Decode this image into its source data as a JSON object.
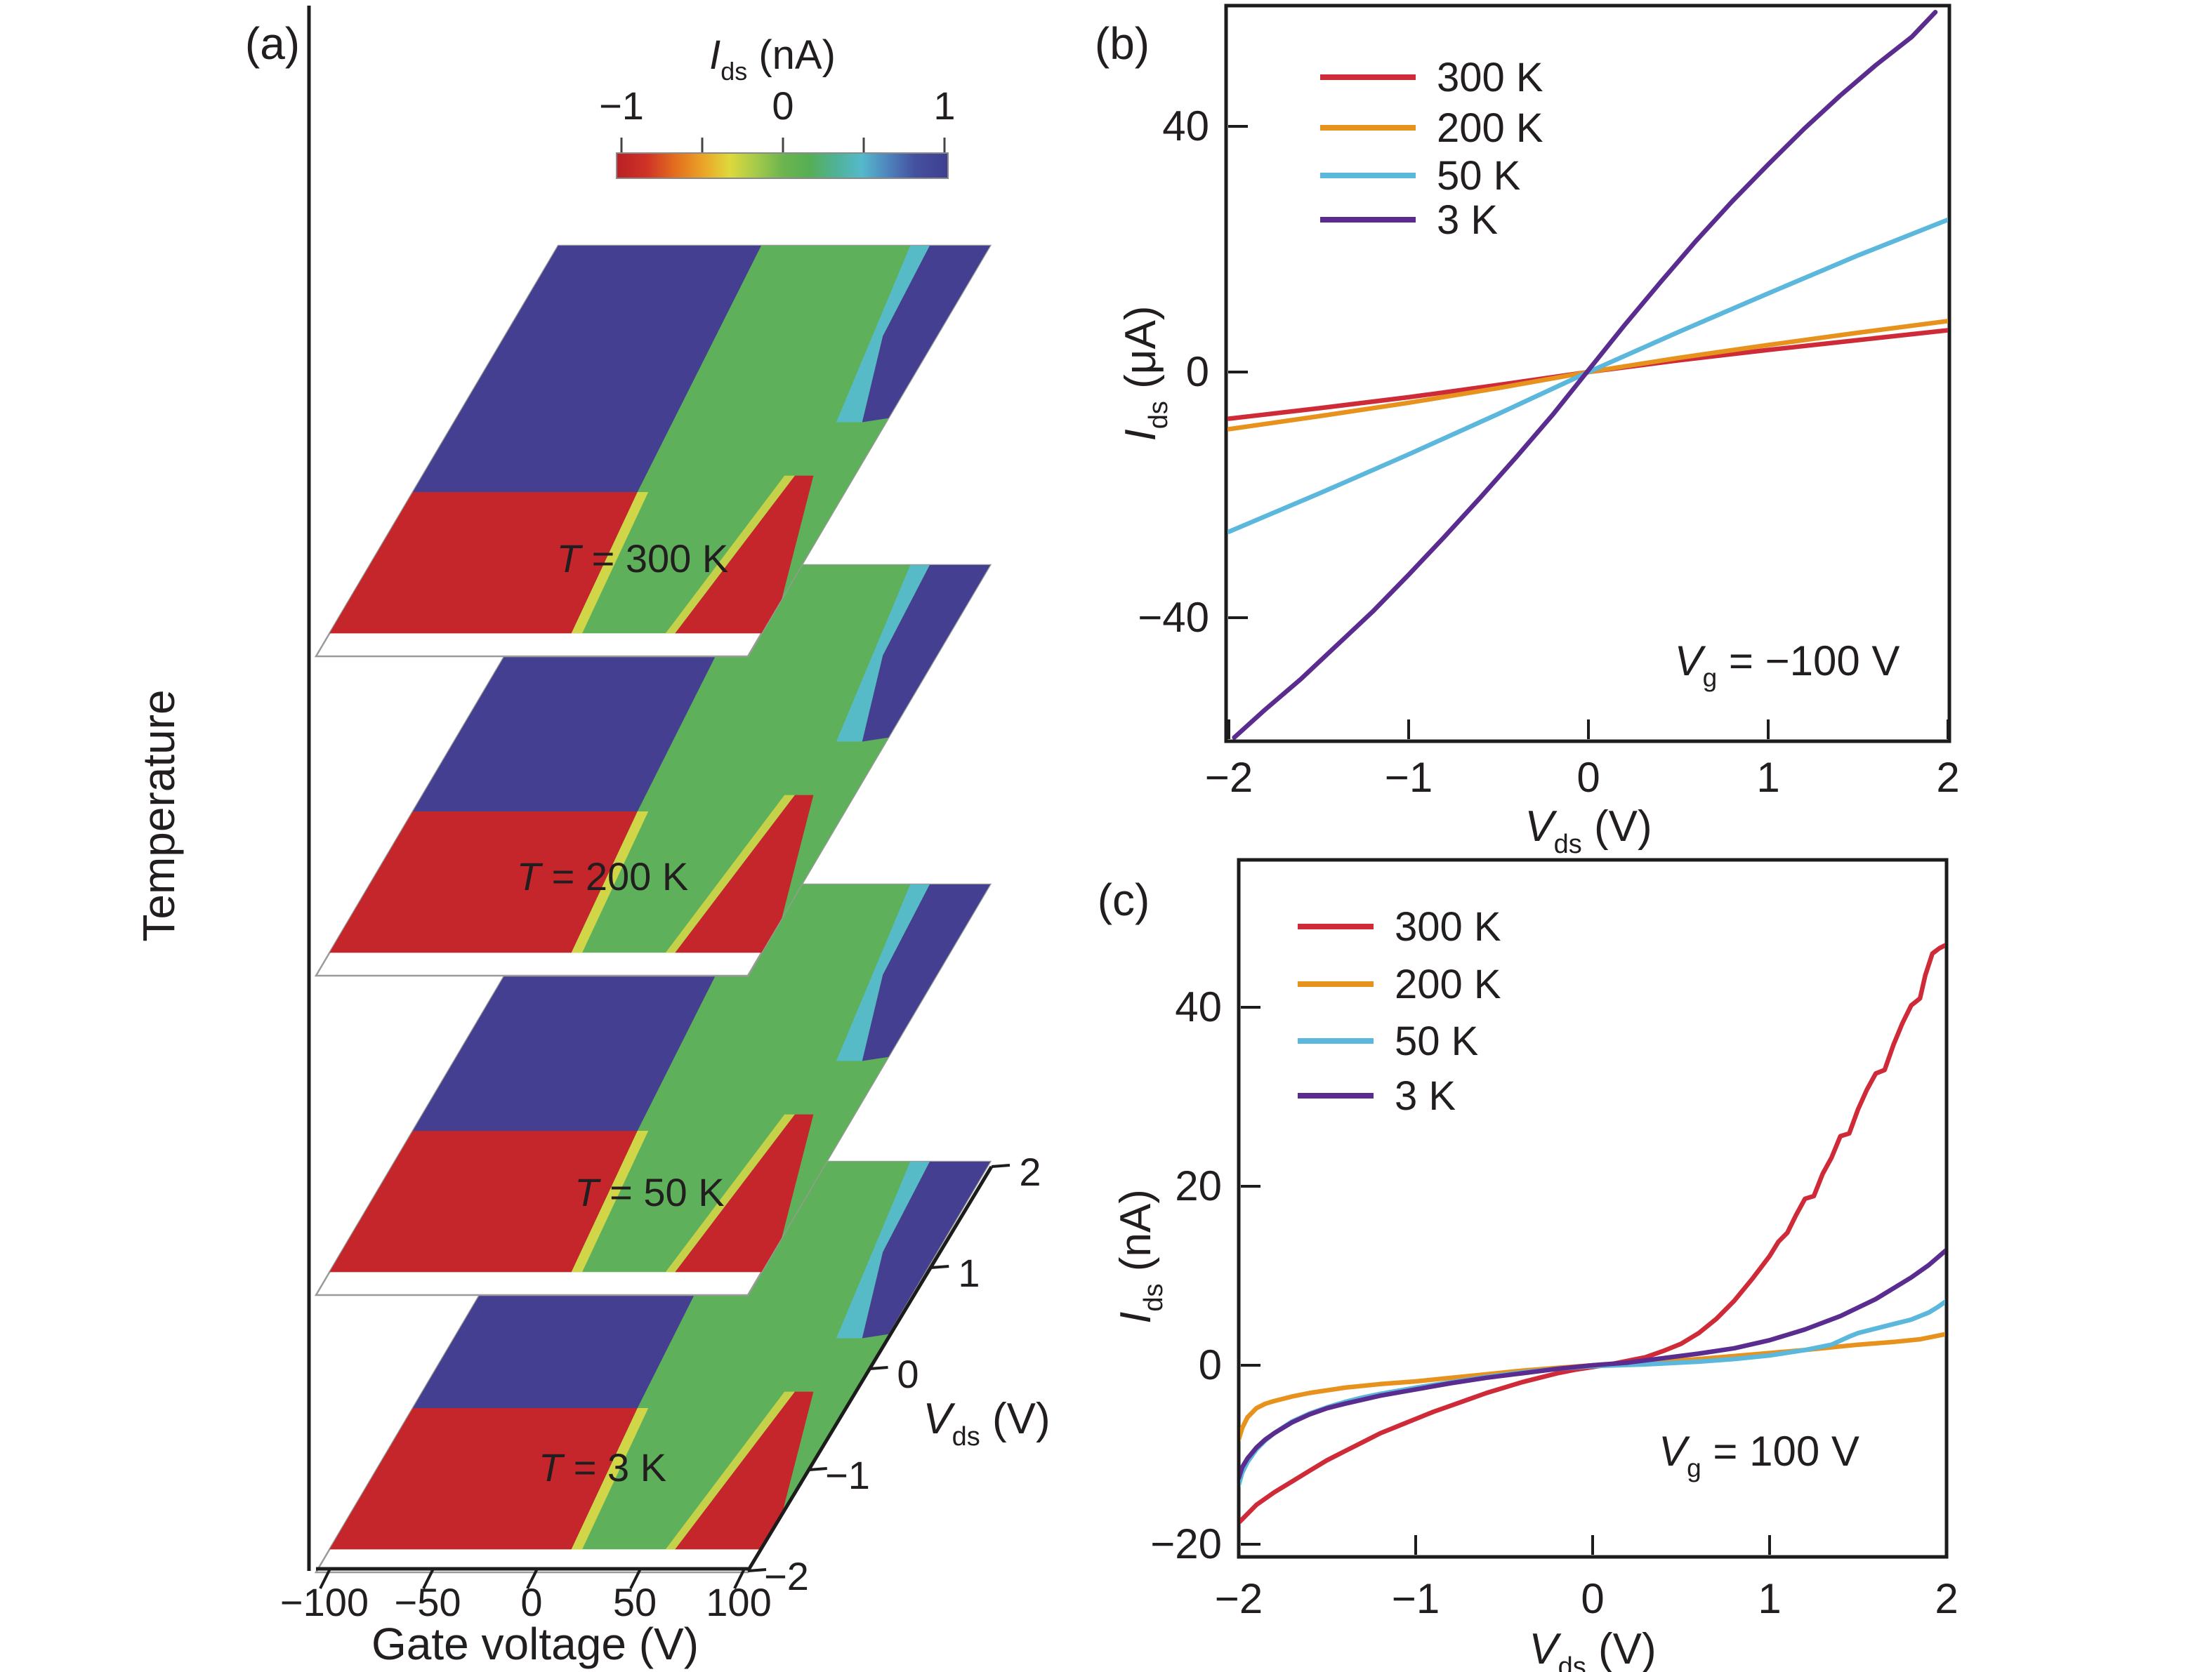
{
  "figure": {
    "panel_labels": [
      "(a)",
      "(b)",
      "(c)"
    ]
  },
  "sub_labels": {
    "colorbar_title": {
      "var": "I",
      "sub": "ds",
      "rest": " (nA)"
    },
    "vds_3d": {
      "var": "V",
      "sub": "ds",
      "rest": " (V)"
    },
    "b_ylabel": {
      "var": "I",
      "sub": "ds",
      "rest": " (μA)"
    },
    "b_xlabel": {
      "var": "V",
      "sub": "ds",
      "rest": " (V)"
    },
    "c_ylabel": {
      "var": "I",
      "sub": "ds",
      "rest": " (nA)"
    },
    "c_xlabel": {
      "var": "V",
      "sub": "ds",
      "rest": " (V)"
    },
    "b_annotation": {
      "var": "V",
      "sub": "g",
      "rest": " = −100 V"
    },
    "c_annotation": {
      "var": "V",
      "sub": "g",
      "rest": " = 100 V"
    }
  },
  "chart_data": [
    {
      "type": "heatmap",
      "panel": "a",
      "z_axis_label": "Temperature",
      "x_axis": {
        "label": "Gate voltage (V)",
        "tick_labels": [
          "−100",
          "−50",
          "0",
          "50",
          "100"
        ],
        "tick_values": [
          -100,
          -50,
          0,
          50,
          100
        ],
        "range": [
          -100,
          100
        ]
      },
      "depth_axis": {
        "tick_labels": [
          "2",
          "1",
          "0",
          "−1",
          "−2"
        ],
        "tick_values": [
          2,
          1,
          0,
          -1,
          -2
        ],
        "range": [
          -2,
          2
        ]
      },
      "colorbar": {
        "tick_labels": [
          "−1",
          "0",
          "1"
        ],
        "tick_values": [
          -1,
          0,
          1
        ],
        "range": [
          -1,
          1
        ],
        "gradient": [
          [
            0,
            "#b92025"
          ],
          [
            0.09,
            "#cf3227"
          ],
          [
            0.18,
            "#e4701f"
          ],
          [
            0.27,
            "#eaa929"
          ],
          [
            0.34,
            "#ded93c"
          ],
          [
            0.42,
            "#a6ca4a"
          ],
          [
            0.5,
            "#6db54f"
          ],
          [
            0.58,
            "#57ae53"
          ],
          [
            0.66,
            "#4fb295"
          ],
          [
            0.74,
            "#55b9cb"
          ],
          [
            0.82,
            "#4f83bd"
          ],
          [
            0.9,
            "#44519f"
          ],
          [
            1,
            "#3f3e8f"
          ]
        ]
      },
      "layers": [
        {
          "temperature": "300 K",
          "label": "T = 300 K",
          "label_spec": {
            "var": "T",
            "rest": " = 300 K"
          }
        },
        {
          "temperature": "200 K",
          "label": "T = 200 K",
          "label_spec": {
            "var": "T",
            "rest": " = 200 K"
          }
        },
        {
          "temperature": "50 K",
          "label": "T = 50 K",
          "label_spec": {
            "var": "T",
            "rest": " = 50 K"
          }
        },
        {
          "temperature": "3 K",
          "label": "T = 3 K",
          "label_spec": {
            "var": "T",
            "rest": " = 3 K"
          }
        }
      ],
      "palette": {
        "negative_red": "#c5262c",
        "zero_green": "#5fb05a",
        "positive_blue": "#453f92",
        "cyan_fringe": "#55bcd1",
        "yellow_fringe": "#ddda45"
      },
      "regions": {
        "left_bottom": {
          "color": "red",
          "value": "≈ −1 nA"
        },
        "left_top": {
          "color": "blue",
          "value": "≈ +1 nA"
        },
        "middle_band": {
          "color": "green",
          "value": "≈ 0 nA"
        },
        "right_top": {
          "color": "blue",
          "value": "≈ +1 nA"
        },
        "right_bottom_edge": {
          "color": "red",
          "value": "≈ −1 nA"
        }
      }
    },
    {
      "type": "line",
      "panel": "b",
      "x_ticks": [
        "−2",
        "−1",
        "0",
        "1",
        "2"
      ],
      "x_tick_values": [
        -2,
        -1,
        0,
        1,
        2
      ],
      "y_ticks": [
        "40",
        "0",
        "−40"
      ],
      "y_tick_values": [
        40,
        0,
        -40
      ],
      "xlim": [
        -2.05,
        2.05
      ],
      "ylim": [
        -60,
        60
      ],
      "legend_position": "upper-left",
      "grid": false,
      "series": [
        {
          "name": "300 K",
          "color": "#cf2a38",
          "points": [
            [
              -2,
              -7.6
            ],
            [
              -1.5,
              -5.9
            ],
            [
              -1,
              -4.1
            ],
            [
              -0.5,
              -2.1
            ],
            [
              0,
              0
            ],
            [
              0.5,
              1.9
            ],
            [
              1,
              3.6
            ],
            [
              1.5,
              5.2
            ],
            [
              2,
              6.8
            ]
          ]
        },
        {
          "name": "200 K",
          "color": "#e8921e",
          "points": [
            [
              -2,
              -9.3
            ],
            [
              -1.5,
              -7.2
            ],
            [
              -1,
              -5
            ],
            [
              -0.5,
              -2.6
            ],
            [
              0,
              0
            ],
            [
              0.5,
              2.3
            ],
            [
              1,
              4.4
            ],
            [
              1.5,
              6.4
            ],
            [
              2,
              8.3
            ]
          ]
        },
        {
          "name": "50 K",
          "color": "#5bb7dc",
          "points": [
            [
              -2,
              -26
            ],
            [
              -1.5,
              -19.8
            ],
            [
              -1,
              -13.4
            ],
            [
              -0.5,
              -6.8
            ],
            [
              0,
              0
            ],
            [
              0.5,
              6.5
            ],
            [
              1,
              12.8
            ],
            [
              1.5,
              19
            ],
            [
              2,
              24.8
            ]
          ]
        },
        {
          "name": "3 K",
          "color": "#5a2c90",
          "points": [
            [
              -1.97,
              -59.5
            ],
            [
              -1.8,
              -55
            ],
            [
              -1.6,
              -50
            ],
            [
              -1.4,
              -44.5
            ],
            [
              -1.2,
              -39
            ],
            [
              -1,
              -33
            ],
            [
              -0.8,
              -26.8
            ],
            [
              -0.6,
              -20.4
            ],
            [
              -0.4,
              -13.8
            ],
            [
              -0.2,
              -7
            ],
            [
              0,
              0.3
            ],
            [
              0.2,
              7.6
            ],
            [
              0.4,
              14.6
            ],
            [
              0.6,
              21.4
            ],
            [
              0.8,
              27.8
            ],
            [
              1,
              33.8
            ],
            [
              1.2,
              39.6
            ],
            [
              1.4,
              45
            ],
            [
              1.6,
              50
            ],
            [
              1.8,
              54.6
            ],
            [
              1.93,
              58.6
            ]
          ]
        }
      ]
    },
    {
      "type": "line",
      "panel": "c",
      "x_ticks": [
        "−2",
        "−1",
        "0",
        "1",
        "2"
      ],
      "x_tick_values": [
        -2,
        -1,
        0,
        1,
        2
      ],
      "y_ticks": [
        "40",
        "20",
        "0",
        "−20"
      ],
      "y_tick_values": [
        40,
        20,
        0,
        -20
      ],
      "xlim": [
        -2.05,
        2.05
      ],
      "ylim": [
        -21.5,
        56.5
      ],
      "legend_position": "upper-left",
      "grid": false,
      "series": [
        {
          "name": "300 K",
          "color": "#cf2a38",
          "points": [
            [
              -2,
              -17.6
            ],
            [
              -1.9,
              -15.6
            ],
            [
              -1.8,
              -14.2
            ],
            [
              -1.7,
              -13
            ],
            [
              -1.6,
              -11.8
            ],
            [
              -1.5,
              -10.6
            ],
            [
              -1.4,
              -9.6
            ],
            [
              -1.3,
              -8.6
            ],
            [
              -1.2,
              -7.6
            ],
            [
              -1.1,
              -6.8
            ],
            [
              -1,
              -6
            ],
            [
              -0.9,
              -5.2
            ],
            [
              -0.8,
              -4.5
            ],
            [
              -0.7,
              -3.8
            ],
            [
              -0.6,
              -3.1
            ],
            [
              -0.5,
              -2.5
            ],
            [
              -0.4,
              -1.9
            ],
            [
              -0.3,
              -1.4
            ],
            [
              -0.2,
              -0.9
            ],
            [
              -0.1,
              -0.5
            ],
            [
              0,
              -0.2
            ],
            [
              0.1,
              0.1
            ],
            [
              0.2,
              0.5
            ],
            [
              0.3,
              0.9
            ],
            [
              0.4,
              1.6
            ],
            [
              0.5,
              2.4
            ],
            [
              0.6,
              3.6
            ],
            [
              0.7,
              5.2
            ],
            [
              0.8,
              7.2
            ],
            [
              0.9,
              9.6
            ],
            [
              1,
              12.2
            ],
            [
              1.05,
              13.8
            ],
            [
              1.1,
              14.8
            ],
            [
              1.15,
              16.8
            ],
            [
              1.2,
              18.6
            ],
            [
              1.25,
              18.9
            ],
            [
              1.3,
              21.4
            ],
            [
              1.35,
              23.2
            ],
            [
              1.4,
              25.6
            ],
            [
              1.45,
              25.9
            ],
            [
              1.5,
              28.6
            ],
            [
              1.55,
              30.8
            ],
            [
              1.6,
              32.6
            ],
            [
              1.65,
              33
            ],
            [
              1.7,
              35.8
            ],
            [
              1.75,
              38.2
            ],
            [
              1.8,
              40.2
            ],
            [
              1.85,
              41
            ],
            [
              1.88,
              43.6
            ],
            [
              1.92,
              46
            ],
            [
              1.96,
              46.6
            ],
            [
              2,
              47
            ]
          ]
        },
        {
          "name": "200 K",
          "color": "#e8921e",
          "points": [
            [
              -2,
              -8.3
            ],
            [
              -1.98,
              -7
            ],
            [
              -1.95,
              -5.8
            ],
            [
              -1.9,
              -4.8
            ],
            [
              -1.85,
              -4.3
            ],
            [
              -1.8,
              -4
            ],
            [
              -1.7,
              -3.5
            ],
            [
              -1.6,
              -3.1
            ],
            [
              -1.5,
              -2.8
            ],
            [
              -1.4,
              -2.5
            ],
            [
              -1.2,
              -2.1
            ],
            [
              -1,
              -1.8
            ],
            [
              -0.8,
              -1.4
            ],
            [
              -0.6,
              -1
            ],
            [
              -0.4,
              -0.6
            ],
            [
              -0.2,
              -0.3
            ],
            [
              0,
              0
            ],
            [
              0.3,
              0.3
            ],
            [
              0.6,
              0.7
            ],
            [
              0.9,
              1.2
            ],
            [
              1.2,
              1.7
            ],
            [
              1.5,
              2.3
            ],
            [
              1.7,
              2.6
            ],
            [
              1.85,
              2.9
            ],
            [
              1.95,
              3.3
            ],
            [
              2,
              3.5
            ]
          ]
        },
        {
          "name": "50 K",
          "color": "#5bb7dc",
          "points": [
            [
              -2,
              -13.4
            ],
            [
              -1.98,
              -12
            ],
            [
              -1.95,
              -10.8
            ],
            [
              -1.9,
              -9.4
            ],
            [
              -1.85,
              -8.4
            ],
            [
              -1.8,
              -7.6
            ],
            [
              -1.7,
              -6.3
            ],
            [
              -1.6,
              -5.4
            ],
            [
              -1.5,
              -4.7
            ],
            [
              -1.4,
              -4.1
            ],
            [
              -1.3,
              -3.6
            ],
            [
              -1.2,
              -3.2
            ],
            [
              -1,
              -2.5
            ],
            [
              -0.8,
              -1.9
            ],
            [
              -0.6,
              -1.3
            ],
            [
              -0.4,
              -0.8
            ],
            [
              -0.2,
              -0.4
            ],
            [
              0,
              -0.1
            ],
            [
              0.3,
              0.1
            ],
            [
              0.6,
              0.4
            ],
            [
              0.8,
              0.7
            ],
            [
              1,
              1.1
            ],
            [
              1.2,
              1.7
            ],
            [
              1.35,
              2.3
            ],
            [
              1.45,
              3.2
            ],
            [
              1.5,
              3.6
            ],
            [
              1.6,
              4.1
            ],
            [
              1.7,
              4.6
            ],
            [
              1.8,
              5.1
            ],
            [
              1.9,
              5.9
            ],
            [
              1.95,
              6.5
            ],
            [
              2,
              7.2
            ]
          ]
        },
        {
          "name": "3 K",
          "color": "#5a2c90",
          "points": [
            [
              -2,
              -12.6
            ],
            [
              -1.98,
              -11.4
            ],
            [
              -1.95,
              -10.4
            ],
            [
              -1.9,
              -9.2
            ],
            [
              -1.85,
              -8.3
            ],
            [
              -1.8,
              -7.6
            ],
            [
              -1.7,
              -6.4
            ],
            [
              -1.6,
              -5.5
            ],
            [
              -1.5,
              -4.8
            ],
            [
              -1.4,
              -4.3
            ],
            [
              -1.2,
              -3.4
            ],
            [
              -1,
              -2.7
            ],
            [
              -0.8,
              -2
            ],
            [
              -0.6,
              -1.4
            ],
            [
              -0.4,
              -0.9
            ],
            [
              -0.2,
              -0.4
            ],
            [
              0,
              0
            ],
            [
              0.2,
              0.3
            ],
            [
              0.4,
              0.8
            ],
            [
              0.6,
              1.3
            ],
            [
              0.8,
              1.9
            ],
            [
              1,
              2.8
            ],
            [
              1.2,
              4
            ],
            [
              1.4,
              5.5
            ],
            [
              1.6,
              7.4
            ],
            [
              1.8,
              9.8
            ],
            [
              1.9,
              11.2
            ],
            [
              2,
              12.9
            ]
          ]
        }
      ]
    }
  ]
}
